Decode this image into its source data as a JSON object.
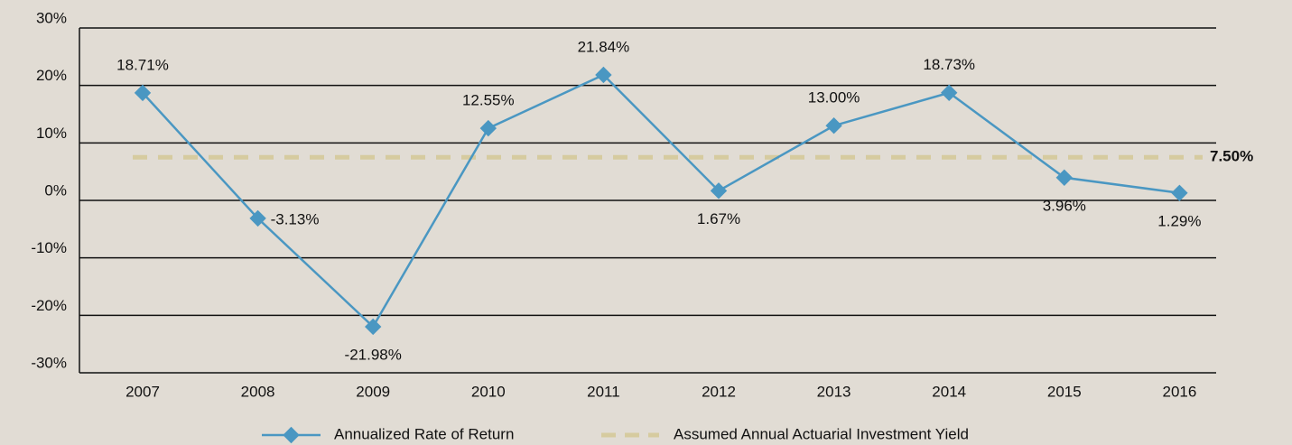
{
  "chart_data": {
    "type": "line",
    "categories": [
      "2007",
      "2008",
      "2009",
      "2010",
      "2011",
      "2012",
      "2013",
      "2014",
      "2015",
      "2016"
    ],
    "series": [
      {
        "name": "Annualized Rate of Return",
        "color": "#4a97c2",
        "values": [
          18.71,
          -3.13,
          -21.98,
          12.55,
          21.84,
          1.67,
          13.0,
          18.73,
          3.96,
          1.29
        ],
        "value_labels": [
          "18.71%",
          "-3.13%",
          "-21.98%",
          "12.55%",
          "21.84%",
          "1.67%",
          "13.00%",
          "18.73%",
          "3.96%",
          "1.29%"
        ]
      }
    ],
    "reference_line": {
      "name": "Assumed Annual Actuarial Investment Yield",
      "color": "#d6cb9f",
      "value": 7.5,
      "value_label": "7.50%"
    },
    "ylim": [
      -30,
      30
    ],
    "yticks": [
      {
        "value": 30,
        "label": "30%"
      },
      {
        "value": 20,
        "label": "20%"
      },
      {
        "value": 10,
        "label": "10%"
      },
      {
        "value": 0,
        "label": "0%"
      },
      {
        "value": -10,
        "label": "-10%"
      },
      {
        "value": -20,
        "label": "-20%"
      },
      {
        "value": -30,
        "label": "-30%"
      }
    ],
    "grid": true
  }
}
